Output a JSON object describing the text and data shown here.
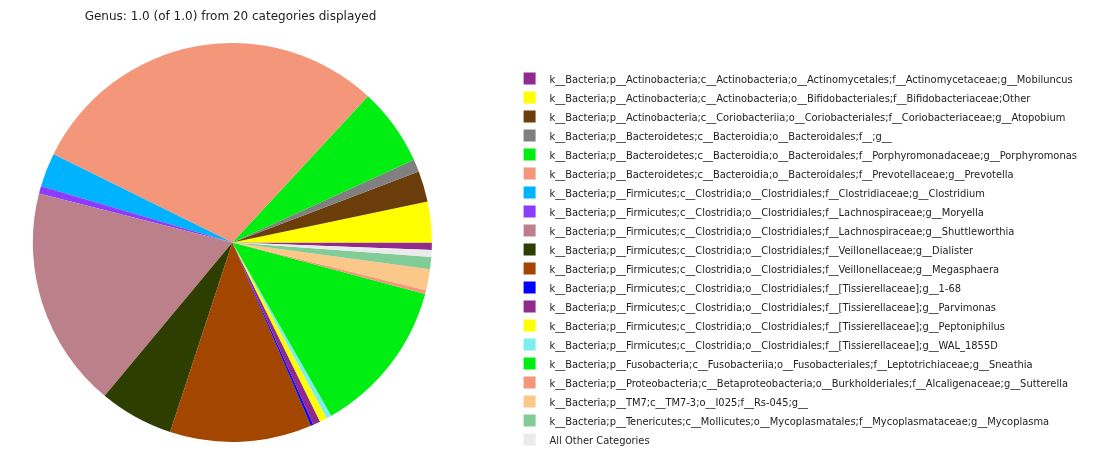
{
  "chart_data": {
    "type": "pie",
    "title": "Genus: 1.0 (of 1.0) from 20 categories displayed",
    "categories": [
      "k__Bacteria;p__Actinobacteria;c__Actinobacteria;o__Actinomycetales;f__Actinomycetaceae;g__Mobiluncus",
      "k__Bacteria;p__Actinobacteria;c__Actinobacteria;o__Bifidobacteriales;f__Bifidobacteriaceae;Other",
      "k__Bacteria;p__Actinobacteria;c__Coriobacteriia;o__Coriobacteriales;f__Coriobacteriaceae;g__Atopobium",
      "k__Bacteria;p__Bacteroidetes;c__Bacteroidia;o__Bacteroidales;f__;g__",
      "k__Bacteria;p__Bacteroidetes;c__Bacteroidia;o__Bacteroidales;f__Porphyromonadaceae;g__Porphyromonas",
      "k__Bacteria;p__Bacteroidetes;c__Bacteroidia;o__Bacteroidales;f__Prevotellaceae;g__Prevotella",
      "k__Bacteria;p__Firmicutes;c__Clostridia;o__Clostridiales;f__Clostridiaceae;g__Clostridium",
      "k__Bacteria;p__Firmicutes;c__Clostridia;o__Clostridiales;f__Lachnospiraceae;g__Moryella",
      "k__Bacteria;p__Firmicutes;c__Clostridia;o__Clostridiales;f__Lachnospiraceae;g__Shuttleworthia",
      "k__Bacteria;p__Firmicutes;c__Clostridia;o__Clostridiales;f__Veillonellaceae;g__Dialister",
      "k__Bacteria;p__Firmicutes;c__Clostridia;o__Clostridiales;f__Veillonellaceae;g__Megasphaera",
      "k__Bacteria;p__Firmicutes;c__Clostridia;o__Clostridiales;f__[Tissierellaceae];g__1-68",
      "k__Bacteria;p__Firmicutes;c__Clostridia;o__Clostridiales;f__[Tissierellaceae];g__Parvimonas",
      "k__Bacteria;p__Firmicutes;c__Clostridia;o__Clostridiales;f__[Tissierellaceae];g__Peptoniphilus",
      "k__Bacteria;p__Firmicutes;c__Clostridia;o__Clostridiales;f__[Tissierellaceae];g__WAL_1855D",
      "k__Bacteria;p__Fusobacteria;c__Fusobacteriia;o__Fusobacteriales;f__Leptotrichiaceae;g__Sneathia",
      "k__Bacteria;p__Proteobacteria;c__Betaproteobacteria;o__Burkholderiales;f__Alcaligenaceae;g__Sutterella",
      "k__Bacteria;p__TM7;c__TM7-3;o__I025;f__Rs-045;g__",
      "k__Bacteria;p__Tenericutes;c__Mollicutes;o__Mycoplasmatales;f__Mycoplasmataceae;g__Mycoplasma",
      "All Other Categories"
    ],
    "values": [
      0.6,
      3.3,
      2.5,
      1.0,
      6.3,
      29.6,
      2.75,
      0.6,
      17.9,
      6.0,
      11.5,
      0.2,
      0.6,
      0.6,
      0.4,
      12.6,
      0.3,
      1.7,
      1.0,
      0.55
    ],
    "colors": [
      "#912a8e",
      "#ffff00",
      "#6b3d0a",
      "#808080",
      "#00ee11",
      "#f4967a",
      "#00b3ff",
      "#8c3cff",
      "#bb8089",
      "#2e3d00",
      "#a34600",
      "#0000ff",
      "#912a8e",
      "#ffff00",
      "#7deef0",
      "#00ee11",
      "#f4967a",
      "#fcc88a",
      "#82cc98",
      "#ebebeb"
    ],
    "legend": "right"
  }
}
